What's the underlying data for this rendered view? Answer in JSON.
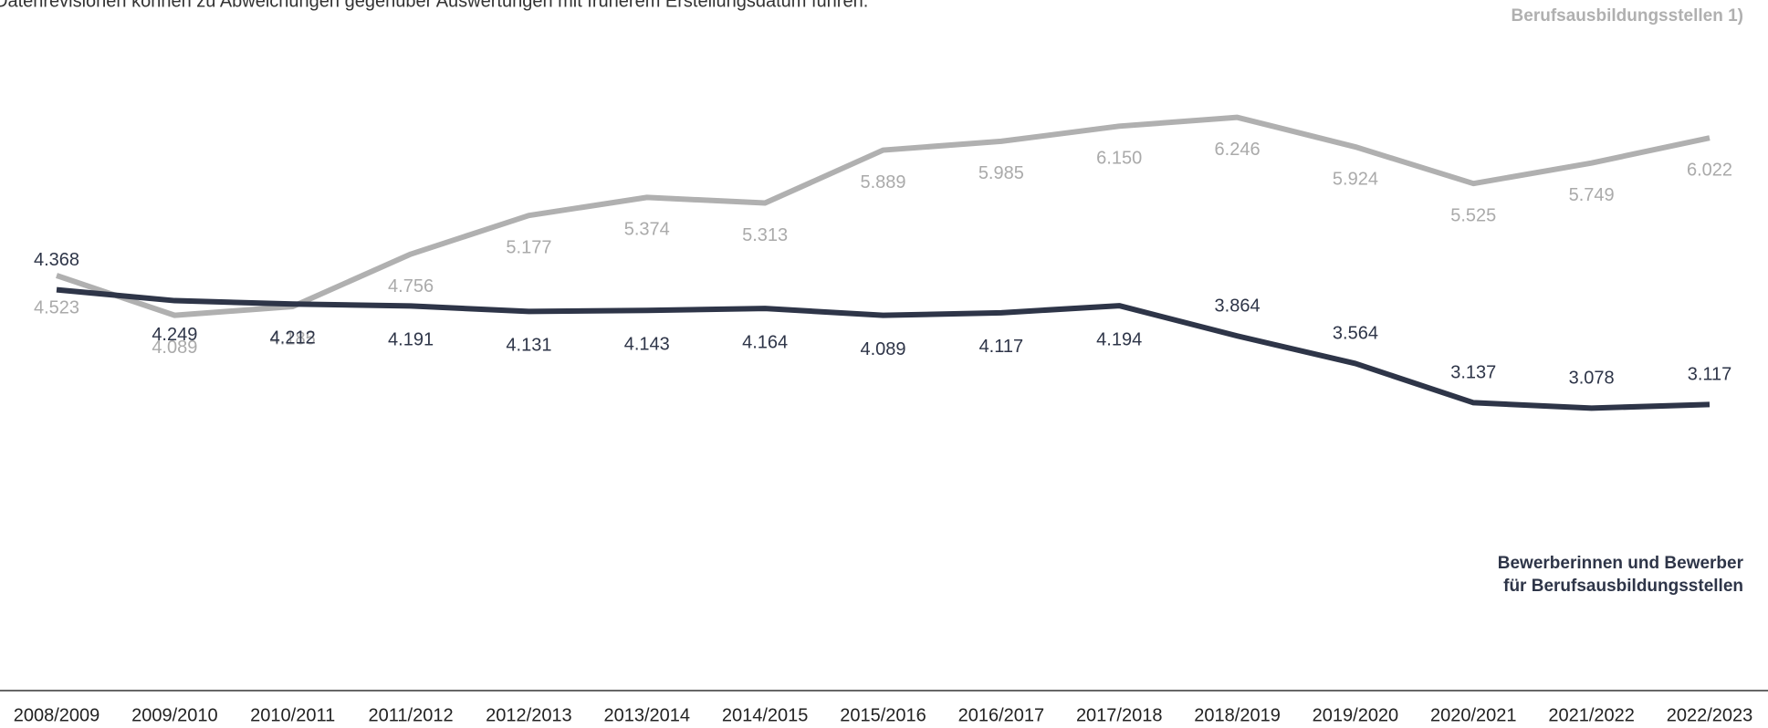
{
  "chart_data": {
    "type": "line",
    "note": "Datenrevisionen können zu Abweichungen gegenüber Auswertungen mit früherem Erstellungsdatum führen.",
    "categories": [
      "2008/2009",
      "2009/2010",
      "2010/2011",
      "2011/2012",
      "2012/2013",
      "2013/2014",
      "2014/2015",
      "2015/2016",
      "2016/2017",
      "2017/2018",
      "2018/2019",
      "2019/2020",
      "2020/2021",
      "2021/2022",
      "2022/2023"
    ],
    "series": [
      {
        "name": "Berufsausbildungsstellen 1)",
        "color": "#b0b0b0",
        "values": [
          4523,
          4089,
          4185,
          4756,
          5177,
          5374,
          5313,
          5889,
          5985,
          6150,
          6246,
          5924,
          5525,
          5749,
          6022
        ],
        "value_labels": [
          "4.523",
          "4.089",
          "4.185",
          "4.756",
          "5.177",
          "5.374",
          "5.313",
          "5.889",
          "5.985",
          "6.150",
          "6.246",
          "5.924",
          "5.525",
          "5.749",
          "6.022"
        ]
      },
      {
        "name": "Bewerberinnen und Bewerber für Berufsausbildungsstellen",
        "color": "#2e3548",
        "values": [
          4368,
          4249,
          4212,
          4191,
          4131,
          4143,
          4164,
          4089,
          4117,
          4194,
          3864,
          3564,
          3137,
          3078,
          3117
        ],
        "value_labels": [
          "4.368",
          "4.249",
          "4.212",
          "4.191",
          "4.131",
          "4.143",
          "4.164",
          "4.089",
          "4.117",
          "4.194",
          "3.864",
          "3.564",
          "3.137",
          "3.078",
          "3.117"
        ]
      }
    ],
    "ylim": [
      0,
      7500
    ]
  }
}
